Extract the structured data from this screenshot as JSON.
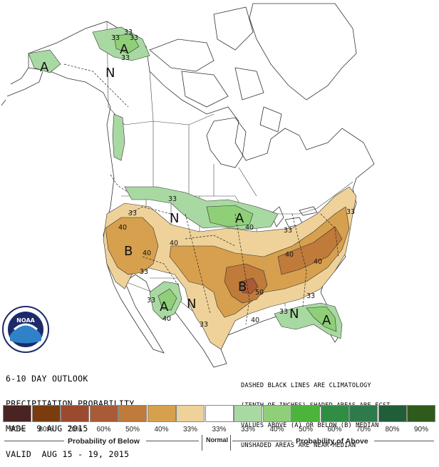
{
  "map_info": {
    "title_lines": [
      "6-10 DAY OUTLOOK",
      "PRECIPITATION PROBABILITY",
      "MADE  9 AUG 2015",
      "VALID  AUG 15 - 19, 2015"
    ],
    "note_lines": [
      "DASHED BLACK LINES ARE CLIMATOLOGY",
      "(TENTH OF INCHES) SHADED AREAS ARE FCST",
      "VALUES ABOVE (A) OR BELOW (B) MEDIAN",
      "UNSHADED AREAS ARE NEAR-MEDIAN"
    ],
    "logo_text": "NOAA"
  },
  "map_labels": {
    "alaska_N": "N",
    "alaska_A1": "A",
    "alaska_A2": "A",
    "west_B": "B",
    "midwest_B": "B",
    "north_N": "N",
    "north_A": "A",
    "sw_A": "A",
    "sw_N": "N",
    "se_N": "N",
    "se_A": "A"
  },
  "contour_labels": {
    "ak1": "33",
    "ak2": "33",
    "ak3": "33",
    "ak4": "33",
    "w33a": "33",
    "w40a": "40",
    "w40b": "40",
    "w33b": "33",
    "n33": "33",
    "n40": "40",
    "c40a": "40",
    "c40b": "40",
    "c40c": "40",
    "c50": "50",
    "c33a": "33",
    "sw33a": "33",
    "sw40": "40",
    "sw33b": "33",
    "se33a": "33",
    "se33b": "33",
    "se40": "40",
    "e33": "33"
  },
  "legend": {
    "below_label": "Probability of Below",
    "normal_label": "Normal",
    "above_label": "Probability of Above",
    "bins": [
      {
        "pct": "90%",
        "color": "#4a2323"
      },
      {
        "pct": "80%",
        "color": "#7a3c0e"
      },
      {
        "pct": "70%",
        "color": "#9b4a2e"
      },
      {
        "pct": "60%",
        "color": "#a85b36"
      },
      {
        "pct": "50%",
        "color": "#c07a3a"
      },
      {
        "pct": "40%",
        "color": "#d7a04e"
      },
      {
        "pct": "33%",
        "color": "#efd29a"
      },
      {
        "pct": "33%",
        "color": "#ffffff"
      },
      {
        "pct": "33%",
        "color": "#a9d9a2"
      },
      {
        "pct": "40%",
        "color": "#8fcf78"
      },
      {
        "pct": "50%",
        "color": "#4cb43a"
      },
      {
        "pct": "60%",
        "color": "#2f8e44"
      },
      {
        "pct": "70%",
        "color": "#2f7a4a"
      },
      {
        "pct": "80%",
        "color": "#1f5e36"
      },
      {
        "pct": "90%",
        "color": "#2e5a1c"
      }
    ]
  }
}
